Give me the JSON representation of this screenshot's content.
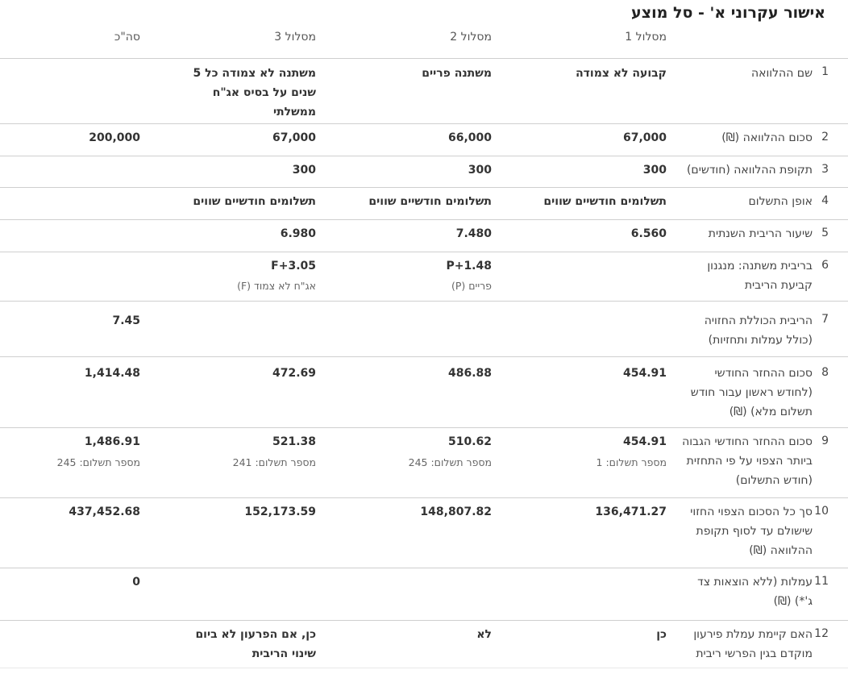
{
  "title": "אישור עקרוני א' - סל מוצע",
  "headers": {
    "m1": "מסלול 1",
    "m2": "מסלול 2",
    "m3": "מסלול 3",
    "total": "סה\"כ"
  },
  "rows": [
    {
      "num": "1",
      "label": "שם ההלוואה",
      "m1": "קבועה לא צמודה",
      "m2": "משתנה פריים",
      "m3": "משתנה לא צמודה כל 5 שנים על בסיס אג\"ח ממשלתי",
      "total": ""
    },
    {
      "num": "2",
      "label": "סכום ההלוואה (₪)",
      "m1": "67,000",
      "m2": "66,000",
      "m3": "67,000",
      "total": "200,000"
    },
    {
      "num": "3",
      "label": "תקופת ההלוואה (חודשים)",
      "m1": "300",
      "m2": "300",
      "m3": "300",
      "total": ""
    },
    {
      "num": "4",
      "label": "אופן התשלום",
      "m1": "תשלומים חודשיים שווים",
      "m2": "תשלומים חודשיים שווים",
      "m3": "תשלומים חודשיים שווים",
      "total": ""
    },
    {
      "num": "5",
      "label": "שיעור הריבית השנתית",
      "m1": "6.560",
      "m2": "7.480",
      "m3": "6.980",
      "total": ""
    },
    {
      "num": "6",
      "label": "בריבית משתנה: מנגנון קביעת הריבית",
      "m1": "",
      "m2": "P+1.48",
      "m2_sub": "פריים (P)",
      "m3": "F+3.05",
      "m3_sub": "אג\"ח לא צמוד (F)",
      "total": ""
    },
    {
      "num": "7",
      "label": "הריבית הכוללת החזויה (כולל עמלות ותחזיות)",
      "m1": "",
      "m2": "",
      "m3": "",
      "total": "7.45"
    },
    {
      "num": "8",
      "label": "סכום ההחזר החודשי (לחודש ראשון עבור חודש תשלום מלא) (₪)",
      "m1": "454.91",
      "m2": "486.88",
      "m3": "472.69",
      "total": "1,414.48"
    },
    {
      "num": "9",
      "label": "סכום ההחזר החודשי הגבוה ביותר הצפוי על פי התחזית (חודש התשלום)",
      "m1": "454.91",
      "m1_sub": "מספר תשלום: 1",
      "m2": "510.62",
      "m2_sub": "מספר תשלום: 245",
      "m3": "521.38",
      "m3_sub": "מספר תשלום: 241",
      "total": "1,486.91",
      "total_sub": "מספר תשלום: 245"
    },
    {
      "num": "10",
      "label": "סך כל הסכום הצפוי החזוי שישולם עד לסוף תקופת ההלוואה (₪)",
      "m1": "136,471.27",
      "m2": "148,807.82",
      "m3": "152,173.59",
      "total": "437,452.68"
    },
    {
      "num": "11",
      "label": "עמלות (ללא הוצאות צד ג'*) (₪)",
      "m1": "",
      "m2": "",
      "m3": "",
      "total": "0"
    },
    {
      "num": "12",
      "label": "האם קיימת עמלת פירעון מוקדם בגין הפרשי ריבית",
      "m1": "כן",
      "m2": "לא",
      "m3": "כן, אם הפרעון לא ביום שינוי הריבית",
      "total": ""
    }
  ]
}
